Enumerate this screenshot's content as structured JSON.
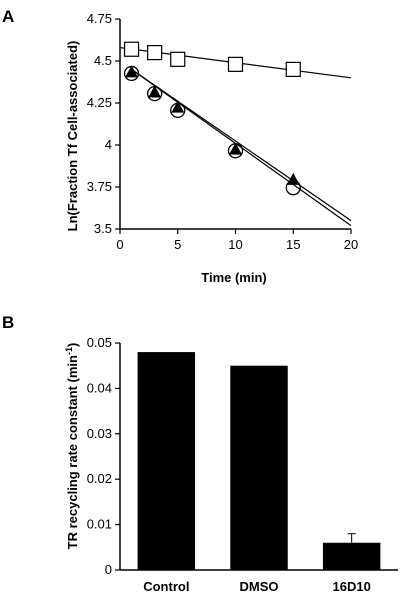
{
  "chart_data": [
    {
      "panel_label": "A",
      "type": "line",
      "xlabel": "Time (min)",
      "ylabel": "Ln(Fraction Tf Cell-associated)",
      "xlim": [
        0,
        20
      ],
      "ylim": [
        3.5,
        4.75
      ],
      "xticks": [
        "0",
        "5",
        "10",
        "15",
        "20"
      ],
      "yticks": [
        "3.5",
        "3.75",
        "4",
        "4.25",
        "4.5",
        "4.75"
      ],
      "grid": false,
      "legend": "none",
      "series": [
        {
          "marker": "open-square",
          "x": [
            1,
            3,
            5,
            10,
            15
          ],
          "y": [
            4.57,
            4.55,
            4.51,
            4.48,
            4.45
          ],
          "fit": {
            "x": [
              0,
              20
            ],
            "y": [
              4.58,
              4.4
            ]
          }
        },
        {
          "marker": "filled-triangle",
          "x": [
            1,
            3,
            5,
            10,
            15
          ],
          "y": [
            4.43,
            4.31,
            4.22,
            3.97,
            3.79
          ],
          "fit": {
            "x": [
              1,
              20
            ],
            "y": [
              4.45,
              3.55
            ]
          }
        },
        {
          "marker": "open-circle",
          "x": [
            1,
            3,
            5,
            10,
            15
          ],
          "y": [
            4.42,
            4.3,
            4.2,
            3.96,
            3.74
          ],
          "fit": {
            "x": [
              1,
              20
            ],
            "y": [
              4.45,
              3.52
            ]
          }
        }
      ]
    },
    {
      "panel_label": "B",
      "type": "bar",
      "categories": [
        "Control",
        "DMSO",
        "16D10"
      ],
      "values": [
        0.048,
        0.045,
        0.006
      ],
      "errors": [
        0,
        0,
        0.002
      ],
      "ylabel_main": "TR recycling rate constant (min",
      "ylabel_sup": "-1",
      "ylabel_close": ")",
      "ylim": [
        0,
        0.05
      ],
      "yticks": [
        "0",
        "0.01",
        "0.02",
        "0.03",
        "0.04",
        "0.05"
      ],
      "grid": false,
      "legend": "none",
      "bar_color": "#000000"
    }
  ]
}
